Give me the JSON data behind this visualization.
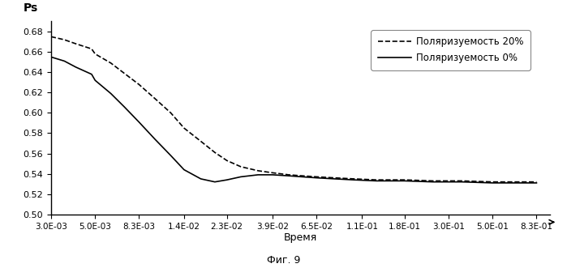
{
  "title_y": "Ps",
  "xlabel": "Время",
  "caption": "Фиг. 9",
  "ylim": [
    0.5,
    0.69
  ],
  "yticks": [
    0.5,
    0.52,
    0.54,
    0.56,
    0.58,
    0.6,
    0.62,
    0.64,
    0.66,
    0.68
  ],
  "xtick_labels": [
    "3.0E-03",
    "5.0E-03",
    "8.3E-03",
    "1.4E-02",
    "2.3E-02",
    "3.9E-02",
    "6.5E-02",
    "1.1E-01",
    "1.8E-01",
    "3.0E-01",
    "5.0E-01",
    "8.3E-01"
  ],
  "xtick_values": [
    0.003,
    0.005,
    0.0083,
    0.014,
    0.023,
    0.039,
    0.065,
    0.11,
    0.18,
    0.3,
    0.5,
    0.83
  ],
  "line20_x": [
    0.003,
    0.0035,
    0.004,
    0.0048,
    0.005,
    0.006,
    0.007,
    0.0083,
    0.01,
    0.012,
    0.014,
    0.017,
    0.02,
    0.023,
    0.027,
    0.033,
    0.039,
    0.047,
    0.055,
    0.065,
    0.08,
    0.1,
    0.13,
    0.18,
    0.25,
    0.35,
    0.5,
    0.65,
    0.83
  ],
  "line20_y": [
    0.675,
    0.672,
    0.668,
    0.663,
    0.658,
    0.649,
    0.639,
    0.628,
    0.614,
    0.6,
    0.585,
    0.572,
    0.561,
    0.553,
    0.547,
    0.543,
    0.541,
    0.539,
    0.538,
    0.537,
    0.536,
    0.535,
    0.534,
    0.534,
    0.533,
    0.533,
    0.532,
    0.532,
    0.532
  ],
  "line0_x": [
    0.003,
    0.0035,
    0.004,
    0.0048,
    0.005,
    0.006,
    0.007,
    0.0083,
    0.01,
    0.012,
    0.014,
    0.017,
    0.02,
    0.023,
    0.027,
    0.033,
    0.039,
    0.047,
    0.055,
    0.065,
    0.08,
    0.1,
    0.13,
    0.18,
    0.25,
    0.35,
    0.5,
    0.65,
    0.83
  ],
  "line0_y": [
    0.655,
    0.651,
    0.645,
    0.638,
    0.632,
    0.619,
    0.606,
    0.591,
    0.574,
    0.558,
    0.544,
    0.535,
    0.532,
    0.534,
    0.537,
    0.539,
    0.539,
    0.538,
    0.537,
    0.536,
    0.535,
    0.534,
    0.533,
    0.533,
    0.532,
    0.532,
    0.531,
    0.531,
    0.531
  ],
  "line20_color": "#000000",
  "line0_color": "#000000",
  "legend_label_20": "Поляризуемость 20%",
  "legend_label_0": "Поляризуемость 0%",
  "background_color": "#ffffff"
}
